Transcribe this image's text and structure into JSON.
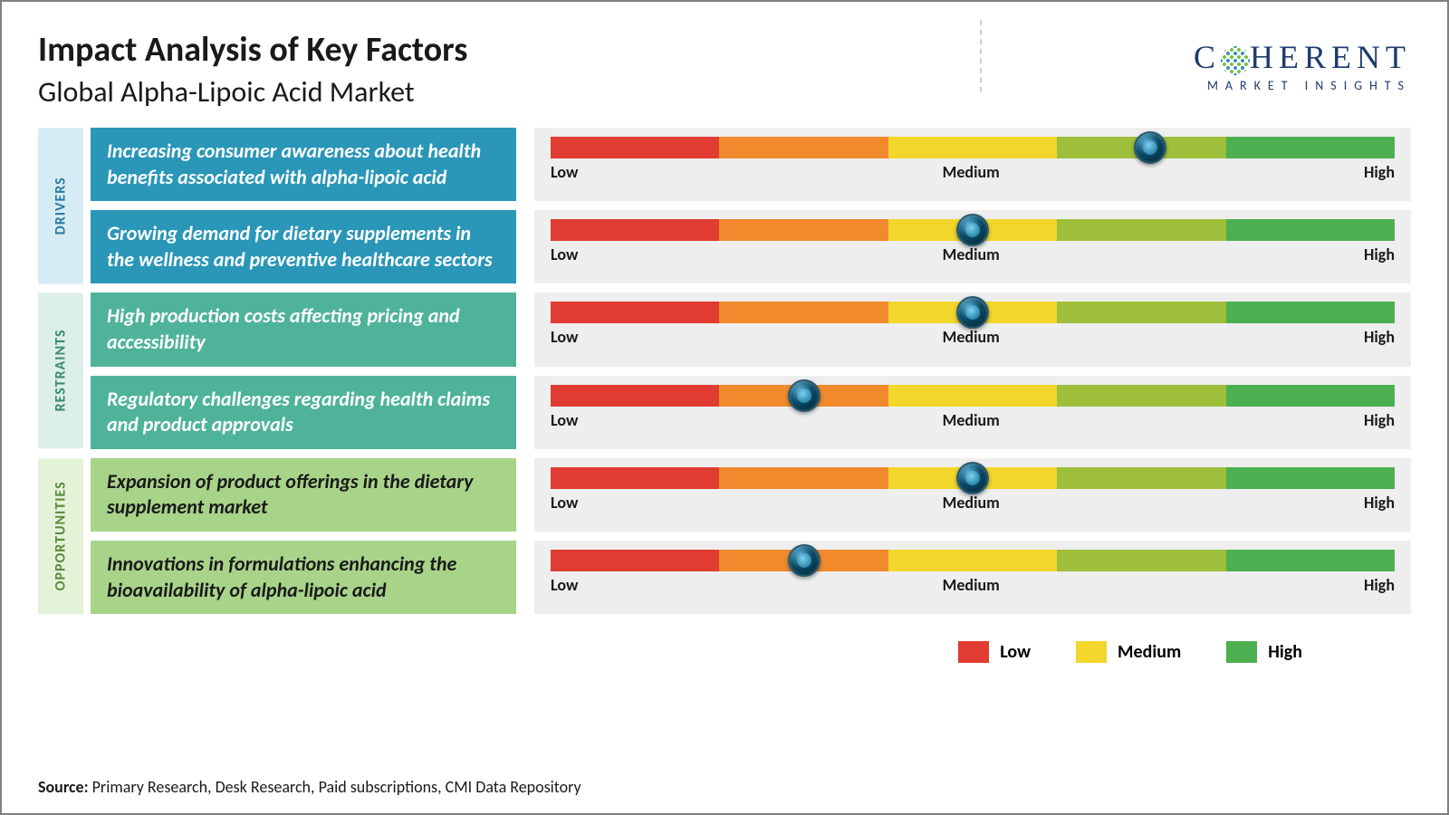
{
  "title": "Impact Analysis of Key Factors",
  "subtitle": "Global Alpha-Lipoic Acid Market",
  "logo": {
    "main_pre": "C",
    "main_post": "HERENT",
    "sub": "MARKET INSIGHTS",
    "color": "#1e3a6e"
  },
  "gauge": {
    "segments": [
      "#e03c31",
      "#f08a2c",
      "#f2d62c",
      "#9fbf3b",
      "#4caf50"
    ],
    "labels": {
      "low": "Low",
      "medium": "Medium",
      "high": "High"
    },
    "bg": "#eeeeee",
    "knob_pct_map": "0=Low edge, 50=Medium, 100=High edge"
  },
  "sections": [
    {
      "name": "DRIVERS",
      "label_bg": "#d6ecf5",
      "label_color": "#2a7aa0",
      "box_bg": "#2a96b8",
      "box_color": "#ffffff",
      "rows": [
        {
          "text": "Increasing consumer awareness about health benefits associated with alpha-lipoic acid",
          "knob_pct": 71
        },
        {
          "text": "Growing demand for dietary supplements in the wellness and preventive healthcare sectors",
          "knob_pct": 50
        }
      ]
    },
    {
      "name": "RESTRAINTS",
      "label_bg": "#dcefe8",
      "label_color": "#3a8a72",
      "box_bg": "#4fb39a",
      "box_color": "#ffffff",
      "rows": [
        {
          "text": "High production costs affecting pricing and accessibility",
          "knob_pct": 50
        },
        {
          "text": "Regulatory challenges regarding health claims and product approvals",
          "knob_pct": 30
        }
      ]
    },
    {
      "name": "OPPORTUNITIES",
      "label_bg": "#e4f2d8",
      "label_color": "#5a8a3a",
      "box_bg": "#a8d48a",
      "box_color": "#1a1a1a",
      "rows": [
        {
          "text": "Expansion of product offerings in the dietary supplement market",
          "knob_pct": 50
        },
        {
          "text": "Innovations in formulations enhancing the bioavailability of alpha-lipoic acid",
          "knob_pct": 30
        }
      ]
    }
  ],
  "legend": [
    {
      "label": "Low",
      "color": "#e03c31"
    },
    {
      "label": "Medium",
      "color": "#f2d62c"
    },
    {
      "label": "High",
      "color": "#4caf50"
    }
  ],
  "source": {
    "prefix": "Source: ",
    "text": "Primary Research, Desk Research, Paid subscriptions, CMI Data Repository"
  }
}
